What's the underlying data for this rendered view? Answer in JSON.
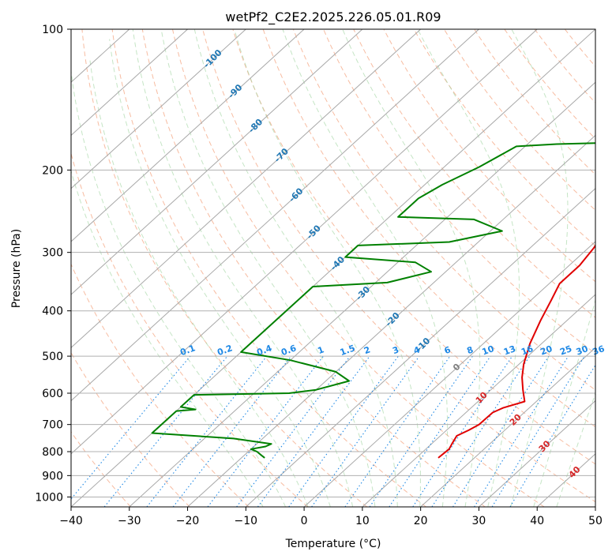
{
  "chart_data": {
    "type": "line",
    "title": "wetPf2_C2E2.2025.226.05.01.R09",
    "xlabel": "Temperature (°C)",
    "ylabel": "Pressure (hPa)",
    "xlim": [
      -40,
      50
    ],
    "ylim": [
      1050,
      100
    ],
    "y_scale": "log",
    "x_ticks": [
      -40,
      -30,
      -20,
      -10,
      0,
      10,
      20,
      30,
      40,
      50
    ],
    "x_tick_labels": [
      "−40",
      "−30",
      "−20",
      "−10",
      "0",
      "10",
      "20",
      "30",
      "40",
      "50"
    ],
    "y_ticks": [
      100,
      200,
      300,
      400,
      500,
      600,
      700,
      800,
      900,
      1000
    ],
    "y_tick_labels": [
      "100",
      "200",
      "300",
      "400",
      "500",
      "600",
      "700",
      "800",
      "900",
      "1000"
    ],
    "grid": true,
    "background_lines": {
      "isotherms": "skewed gray solid",
      "dry_adiabats": "light red dashed",
      "moist_adiabats": "light green dashed",
      "mixing_ratio": "blue dotted"
    },
    "series": [
      {
        "color": "#e00000",
        "points": [
          [
            13.8,
            825
          ],
          [
            14.0,
            790
          ],
          [
            13.5,
            770
          ],
          [
            12.8,
            740
          ],
          [
            13.8,
            720
          ],
          [
            14.5,
            700
          ],
          [
            14.6,
            660
          ],
          [
            15.5,
            645
          ],
          [
            18.0,
            625
          ],
          [
            15.5,
            590
          ],
          [
            13.0,
            555
          ],
          [
            10.8,
            520
          ],
          [
            8.0,
            470
          ],
          [
            5.5,
            420
          ],
          [
            3.5,
            380
          ],
          [
            1.8,
            350
          ],
          [
            1.8,
            320
          ],
          [
            1.0,
            295
          ],
          [
            0.3,
            280
          ],
          [
            2.0,
            265
          ],
          [
            6.0,
            255
          ],
          [
            10.0,
            245
          ],
          [
            11.5,
            235
          ],
          [
            11.8,
            215
          ],
          [
            11.5,
            195
          ],
          [
            10.2,
            175
          ],
          [
            9.5,
            160
          ],
          [
            9.8,
            145
          ],
          [
            10.2,
            130
          ],
          [
            10.0,
            118
          ],
          [
            10.5,
            108
          ],
          [
            11.5,
            103
          ],
          [
            12.8,
            100
          ]
        ]
      },
      {
        "color": "#008000",
        "points": [
          [
            -16.0,
            825
          ],
          [
            -17.0,
            815
          ],
          [
            -18.5,
            800
          ],
          [
            -20.0,
            790
          ],
          [
            -18.0,
            780
          ],
          [
            -17.5,
            770
          ],
          [
            -25.0,
            750
          ],
          [
            -40.0,
            730
          ],
          [
            -40.0,
            655
          ],
          [
            -37.0,
            650
          ],
          [
            -40.0,
            642
          ],
          [
            -40.0,
            605
          ],
          [
            -24.0,
            600
          ],
          [
            -20.0,
            590
          ],
          [
            -16.0,
            565
          ],
          [
            -20.0,
            540
          ],
          [
            -30.0,
            510
          ],
          [
            -40.0,
            490
          ],
          [
            -40.0,
            355
          ],
          [
            -28.0,
            348
          ],
          [
            -22.5,
            330
          ],
          [
            -27.0,
            315
          ],
          [
            -40.0,
            307
          ],
          [
            -40.0,
            290
          ],
          [
            -25.0,
            285
          ],
          [
            -18.0,
            270
          ],
          [
            -25.0,
            255
          ],
          [
            -38.5,
            252
          ],
          [
            -38.5,
            245
          ],
          [
            -38.5,
            230
          ],
          [
            -37.0,
            215
          ],
          [
            -34.0,
            197
          ],
          [
            -31.5,
            178
          ],
          [
            -25.0,
            176
          ],
          [
            -17.0,
            175
          ],
          [
            -11.0,
            170
          ],
          [
            -9.5,
            160
          ],
          [
            -9.0,
            150
          ],
          [
            -7.5,
            140
          ],
          [
            -5.0,
            125
          ],
          [
            -2.5,
            110
          ],
          [
            -2.0,
            100
          ]
        ]
      }
    ],
    "isotherm_labels": [
      {
        "text": "-100",
        "value": -100,
        "p": 115
      },
      {
        "text": "-90",
        "value": -90,
        "p": 135
      },
      {
        "text": "-80",
        "value": -80,
        "p": 160
      },
      {
        "text": "-70",
        "value": -70,
        "p": 185
      },
      {
        "text": "-60",
        "value": -60,
        "p": 225
      },
      {
        "text": "-50",
        "value": -50,
        "p": 270
      },
      {
        "text": "-40",
        "value": -40,
        "p": 315
      },
      {
        "text": "-30",
        "value": -30,
        "p": 365
      },
      {
        "text": "-20",
        "value": -20,
        "p": 415
      },
      {
        "text": "-10",
        "value": -10,
        "p": 470
      },
      {
        "text": "0",
        "value": 0,
        "p": 525
      },
      {
        "text": "10",
        "value": 10,
        "p": 610
      },
      {
        "text": "20",
        "value": 20,
        "p": 680
      },
      {
        "text": "30",
        "value": 30,
        "p": 775
      },
      {
        "text": "40",
        "value": 40,
        "p": 880
      }
    ],
    "mixing_ratio_labels": [
      "0.1",
      "0.2",
      "0.4",
      "0.6",
      "1",
      "1.5",
      "2",
      "3",
      "4",
      "6",
      "8",
      "10",
      "13",
      "16",
      "20",
      "25",
      "30",
      "36"
    ],
    "label_colors": {
      "isotherm_cold": "#1f77b4",
      "isotherm_zero": "#808080",
      "isotherm_warm": "#d62728",
      "mixing_ratio": "#1e88e5"
    }
  }
}
